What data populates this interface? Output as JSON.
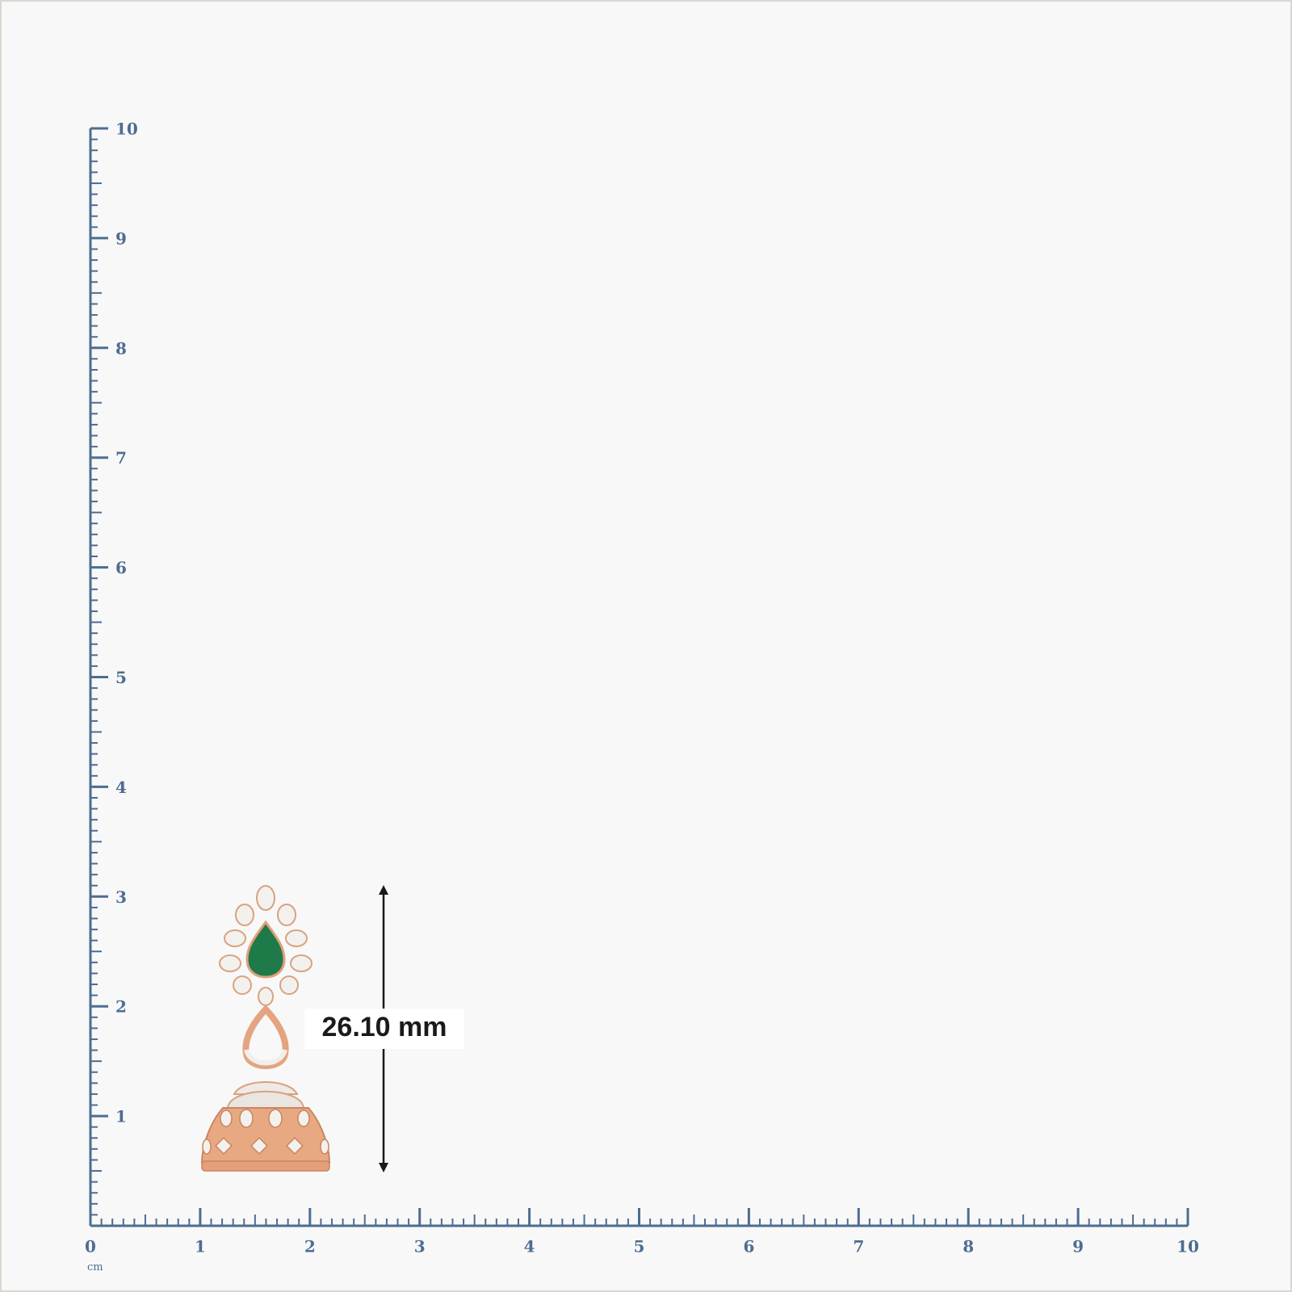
{
  "ruler": {
    "unit": "cm",
    "x_labels": [
      0,
      1,
      2,
      3,
      4,
      5,
      6,
      7,
      8,
      9,
      10
    ],
    "y_labels": [
      1,
      2,
      3,
      4,
      5,
      6,
      7,
      8,
      9,
      10
    ]
  },
  "measurement": {
    "label": "26.10 mm"
  }
}
